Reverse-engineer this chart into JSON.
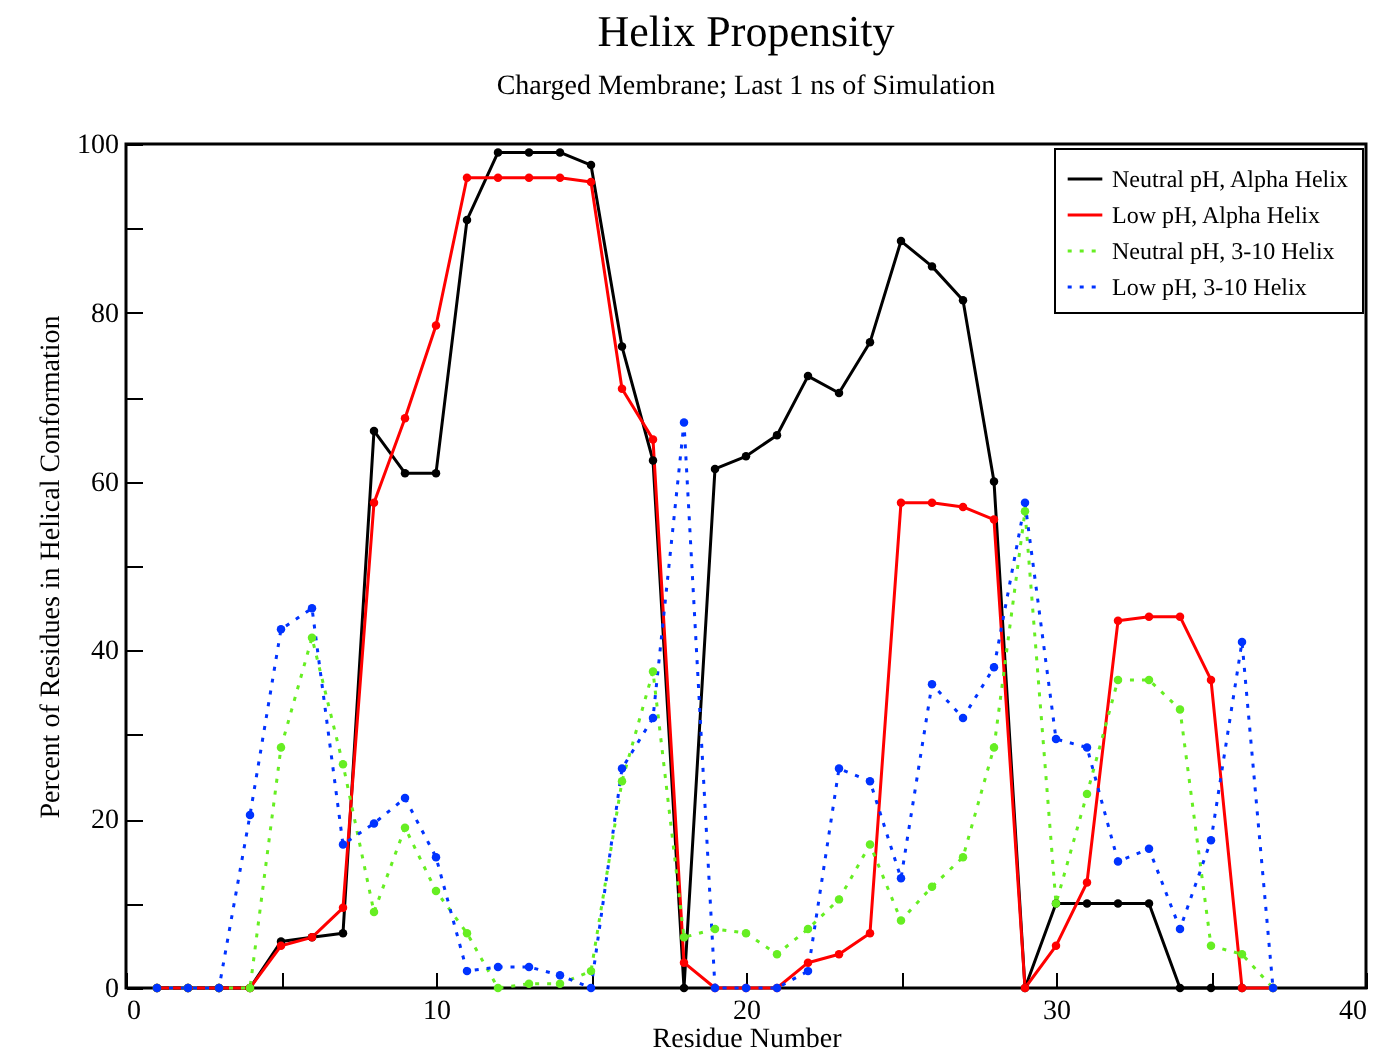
{
  "chart_data": {
    "type": "line",
    "title": "Helix Propensity",
    "subtitle": "Charged Membrane; Last 1 ns of Simulation",
    "xlabel": "Residue Number",
    "ylabel": "Percent of Residues in Helical Conformation",
    "x": [
      1,
      2,
      3,
      4,
      5,
      6,
      7,
      8,
      9,
      10,
      11,
      12,
      13,
      14,
      15,
      16,
      17,
      18,
      19,
      20,
      21,
      22,
      23,
      24,
      25,
      26,
      27,
      28,
      29,
      30,
      31,
      32,
      33,
      34,
      35,
      36,
      37
    ],
    "series": [
      {
        "name": "Neutral pH, Alpha Helix",
        "color": "#000000",
        "line_style": "solid",
        "values": [
          0,
          0,
          0,
          0,
          5.5,
          6,
          6.5,
          66,
          61,
          61,
          91,
          99,
          99,
          99,
          97.5,
          76,
          62.5,
          0,
          61.5,
          63,
          65.5,
          72.5,
          70.5,
          76.5,
          88.5,
          85.5,
          81.5,
          60,
          0,
          10,
          10,
          10,
          10,
          0,
          0,
          0,
          null
        ]
      },
      {
        "name": "Low pH, Alpha Helix",
        "color": "#ff0000",
        "line_style": "solid",
        "values": [
          0,
          0,
          0,
          0,
          5,
          6,
          9.5,
          57.5,
          67.5,
          78.5,
          96,
          96,
          96,
          96,
          95.5,
          71,
          65,
          3,
          0,
          0,
          0,
          3,
          4,
          6.5,
          57.5,
          57.5,
          57,
          55.5,
          0,
          5,
          12.5,
          43.5,
          44,
          44,
          36.5,
          0,
          0
        ]
      },
      {
        "name": "Neutral pH, 3-10 Helix",
        "color": "#66ee22",
        "line_style": "dotted",
        "values": [
          0,
          0,
          0,
          0,
          28.5,
          41.5,
          26.5,
          9,
          19,
          11.5,
          6.5,
          0,
          0.5,
          0.5,
          2,
          24.5,
          37.5,
          6,
          7,
          6.5,
          4,
          7,
          10.5,
          17,
          8,
          12,
          15.5,
          28.5,
          56.5,
          10,
          23,
          36.5,
          36.5,
          33,
          5,
          4,
          0
        ]
      },
      {
        "name": "Low pH, 3-10 Helix",
        "color": "#0033ff",
        "line_style": "dotted",
        "values": [
          0,
          0,
          0,
          20.5,
          42.5,
          45,
          17,
          19.5,
          22.5,
          15.5,
          2,
          2.5,
          2.5,
          1.5,
          0,
          26,
          32,
          67,
          0,
          0,
          0,
          2,
          26,
          24.5,
          13,
          36,
          32,
          38,
          57.5,
          29.5,
          28.5,
          15,
          16.5,
          7,
          17.5,
          41,
          0
        ]
      }
    ],
    "xlim": [
      0,
      40
    ],
    "xticks": [
      0,
      {
        "value": 5,
        "label": null
      },
      10,
      {
        "value": 15,
        "label": null
      },
      20,
      {
        "value": 25,
        "label": null
      },
      30,
      {
        "value": 35,
        "label": null
      },
      40
    ],
    "ylim": [
      0,
      100
    ],
    "yticks": [
      0,
      {
        "value": 10,
        "label": null
      },
      20,
      {
        "value": 30,
        "label": null
      },
      40,
      {
        "value": 50,
        "label": null
      },
      60,
      {
        "value": 70,
        "label": null
      },
      80,
      {
        "value": 90,
        "label": null
      },
      100
    ],
    "grid": false,
    "legend": "top right",
    "marker": "circle"
  }
}
